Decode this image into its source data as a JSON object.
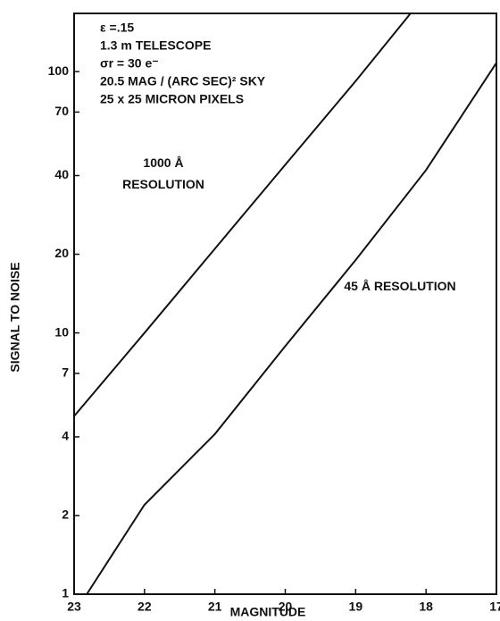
{
  "chart_data": {
    "type": "line",
    "x_label": "MAGNITUDE",
    "y_label": "SIGNAL TO NOISE",
    "annotations": [
      "ε =.15",
      "1.3 m TELESCOPE",
      "σr = 30 e⁻",
      "20.5 MAG / (ARC SEC)² SKY",
      "25 x 25 MICRON PIXELS"
    ],
    "log_y": true,
    "xlim": [
      23,
      17
    ],
    "xticks": [
      23,
      22,
      21,
      20,
      19,
      18,
      17
    ],
    "ylim": [
      1,
      167
    ],
    "yticks": [
      1,
      2,
      4,
      7,
      10,
      20,
      40,
      70,
      100
    ],
    "series": [
      {
        "name": "1000 Å RESOLUTION",
        "color": "#111111",
        "x": [
          23,
          22,
          21,
          20,
          19,
          18.22
        ],
        "values": [
          4.8,
          10,
          21,
          44,
          92,
          167
        ]
      },
      {
        "name": "45 Å RESOLUTION",
        "color": "#111111",
        "x": [
          22.82,
          22,
          21,
          20,
          19,
          18,
          17
        ],
        "values": [
          1,
          2.2,
          4.1,
          8.9,
          19,
          42,
          108
        ]
      }
    ]
  }
}
